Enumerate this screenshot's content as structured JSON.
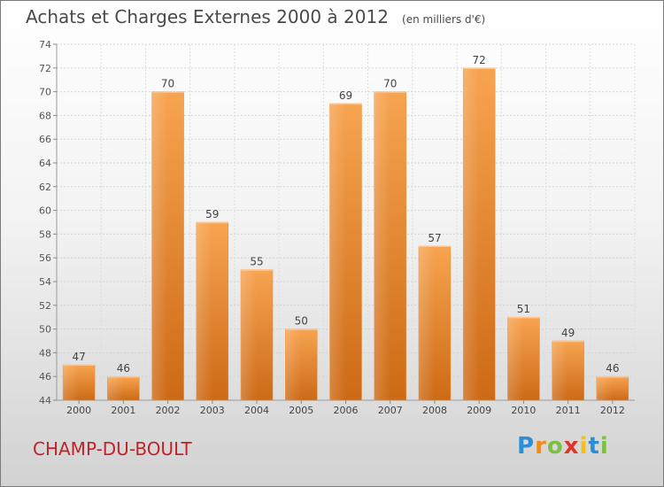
{
  "chart_data": {
    "type": "bar",
    "title": "Achats et Charges Externes 2000 à 2012",
    "subtitle": "(en milliers d'€)",
    "categories": [
      "2000",
      "2001",
      "2002",
      "2003",
      "2004",
      "2005",
      "2006",
      "2007",
      "2008",
      "2009",
      "2010",
      "2011",
      "2012"
    ],
    "values": [
      47,
      46,
      70,
      59,
      55,
      50,
      69,
      70,
      57,
      72,
      51,
      49,
      46
    ],
    "ylim": [
      44,
      74
    ],
    "yticks": [
      44,
      46,
      48,
      50,
      52,
      54,
      56,
      58,
      60,
      62,
      64,
      66,
      68,
      70,
      72,
      74
    ],
    "grid": true,
    "bar_color": "#f08a28"
  },
  "commune": "CHAMP-DU-BOULT",
  "brand": {
    "letters": [
      "P",
      "r",
      "o",
      "x",
      "i",
      "t",
      "i"
    ],
    "colors": [
      "#2a8fd6",
      "#f18a1c",
      "#7cc142",
      "#e2332a",
      "#f3bf1a",
      "#2a8fd6",
      "#7cc142"
    ]
  }
}
